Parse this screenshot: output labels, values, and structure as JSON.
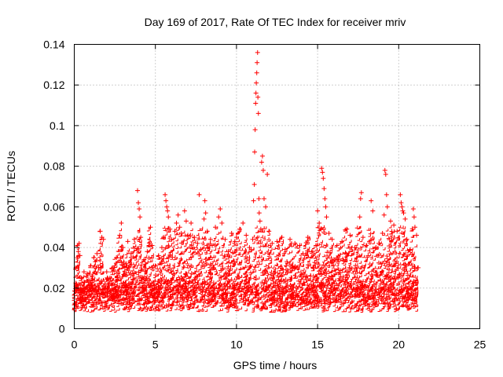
{
  "chart_data": {
    "type": "scatter",
    "title": "Day 169 of 2017, Rate Of TEC Index for receiver mriv",
    "xlabel": "GPS time / hours",
    "ylabel": "ROTI / TECUs",
    "xlim": [
      0,
      25
    ],
    "ylim": [
      0,
      0.14
    ],
    "xticks": [
      0,
      5,
      10,
      15,
      20,
      25
    ],
    "yticks": [
      0,
      0.02,
      0.04,
      0.06,
      0.08,
      0.1,
      0.12,
      0.14
    ],
    "xtick_labels": [
      "0",
      "5",
      "10",
      "15",
      "20",
      "25"
    ],
    "ytick_labels": [
      "0",
      "0.02",
      "0.04",
      "0.06",
      "0.08",
      "0.1",
      "0.12",
      "0.14"
    ],
    "grid": true,
    "marker": "plus",
    "color": "#ff0000",
    "series": [
      {
        "name": "ROTI",
        "points": [
          [
            0.05,
            0.012
          ],
          [
            0.1,
            0.03
          ],
          [
            0.15,
            0.022
          ],
          [
            0.2,
            0.041
          ],
          [
            0.25,
            0.038
          ],
          [
            0.3,
            0.042
          ],
          [
            0.35,
            0.036
          ],
          [
            0.4,
            0.018
          ],
          [
            0.45,
            0.025
          ],
          [
            0.5,
            0.015
          ],
          [
            0.6,
            0.028
          ],
          [
            0.7,
            0.02
          ],
          [
            0.8,
            0.027
          ],
          [
            0.9,
            0.024
          ],
          [
            1.0,
            0.031
          ],
          [
            1.1,
            0.026
          ],
          [
            1.2,
            0.035
          ],
          [
            1.3,
            0.033
          ],
          [
            1.4,
            0.037
          ],
          [
            1.5,
            0.03
          ],
          [
            1.6,
            0.048
          ],
          [
            1.7,
            0.045
          ],
          [
            1.8,
            0.044
          ],
          [
            1.9,
            0.022
          ],
          [
            2.0,
            0.028
          ],
          [
            2.2,
            0.025
          ],
          [
            2.4,
            0.03
          ],
          [
            2.6,
            0.035
          ],
          [
            2.8,
            0.046
          ],
          [
            2.9,
            0.052
          ],
          [
            3.0,
            0.04
          ],
          [
            3.2,
            0.032
          ],
          [
            3.3,
            0.043
          ],
          [
            3.5,
            0.037
          ],
          [
            3.7,
            0.044
          ],
          [
            3.9,
            0.068
          ],
          [
            3.95,
            0.062
          ],
          [
            4.0,
            0.059
          ],
          [
            4.05,
            0.055
          ],
          [
            4.1,
            0.045
          ],
          [
            4.3,
            0.034
          ],
          [
            4.5,
            0.038
          ],
          [
            4.7,
            0.05
          ],
          [
            4.8,
            0.041
          ],
          [
            5.0,
            0.031
          ],
          [
            5.2,
            0.036
          ],
          [
            5.4,
            0.04
          ],
          [
            5.5,
            0.045
          ],
          [
            5.6,
            0.066
          ],
          [
            5.65,
            0.063
          ],
          [
            5.7,
            0.06
          ],
          [
            5.75,
            0.058
          ],
          [
            5.8,
            0.055
          ],
          [
            5.9,
            0.049
          ],
          [
            6.0,
            0.044
          ],
          [
            6.2,
            0.048
          ],
          [
            6.3,
            0.052
          ],
          [
            6.4,
            0.056
          ],
          [
            6.5,
            0.05
          ],
          [
            6.6,
            0.047
          ],
          [
            6.8,
            0.058
          ],
          [
            6.9,
            0.053
          ],
          [
            7.0,
            0.046
          ],
          [
            7.2,
            0.052
          ],
          [
            7.4,
            0.045
          ],
          [
            7.6,
            0.042
          ],
          [
            7.7,
            0.066
          ],
          [
            7.8,
            0.039
          ],
          [
            8.0,
            0.054
          ],
          [
            8.05,
            0.063
          ],
          [
            8.1,
            0.057
          ],
          [
            8.2,
            0.048
          ],
          [
            8.4,
            0.044
          ],
          [
            8.5,
            0.041
          ],
          [
            8.7,
            0.05
          ],
          [
            8.9,
            0.055
          ],
          [
            9.0,
            0.059
          ],
          [
            9.1,
            0.052
          ],
          [
            9.3,
            0.044
          ],
          [
            9.5,
            0.038
          ],
          [
            9.7,
            0.047
          ],
          [
            9.9,
            0.043
          ],
          [
            10.0,
            0.045
          ],
          [
            10.2,
            0.049
          ],
          [
            10.4,
            0.052
          ],
          [
            10.6,
            0.046
          ],
          [
            10.8,
            0.04
          ],
          [
            11.0,
            0.044
          ],
          [
            11.05,
            0.063
          ],
          [
            11.1,
            0.071
          ],
          [
            11.12,
            0.087
          ],
          [
            11.15,
            0.098
          ],
          [
            11.18,
            0.111
          ],
          [
            11.2,
            0.116
          ],
          [
            11.22,
            0.121
          ],
          [
            11.25,
            0.126
          ],
          [
            11.27,
            0.131
          ],
          [
            11.3,
            0.136
          ],
          [
            11.32,
            0.114
          ],
          [
            11.35,
            0.106
          ],
          [
            11.38,
            0.064
          ],
          [
            11.4,
            0.057
          ],
          [
            11.45,
            0.053
          ],
          [
            11.5,
            0.049
          ],
          [
            11.55,
            0.082
          ],
          [
            11.6,
            0.085
          ],
          [
            11.65,
            0.078
          ],
          [
            11.7,
            0.064
          ],
          [
            11.8,
            0.06
          ],
          [
            11.9,
            0.076
          ],
          [
            12.0,
            0.048
          ],
          [
            12.2,
            0.042
          ],
          [
            12.5,
            0.043
          ],
          [
            12.8,
            0.045
          ],
          [
            13.0,
            0.039
          ],
          [
            13.3,
            0.044
          ],
          [
            13.6,
            0.042
          ],
          [
            13.9,
            0.041
          ],
          [
            14.1,
            0.037
          ],
          [
            14.4,
            0.045
          ],
          [
            14.7,
            0.038
          ],
          [
            14.9,
            0.041
          ],
          [
            15.0,
            0.058
          ],
          [
            15.1,
            0.052
          ],
          [
            15.2,
            0.049
          ],
          [
            15.25,
            0.079
          ],
          [
            15.3,
            0.077
          ],
          [
            15.35,
            0.074
          ],
          [
            15.4,
            0.069
          ],
          [
            15.45,
            0.064
          ],
          [
            15.5,
            0.06
          ],
          [
            15.55,
            0.055
          ],
          [
            15.7,
            0.047
          ],
          [
            15.9,
            0.044
          ],
          [
            16.2,
            0.041
          ],
          [
            16.5,
            0.043
          ],
          [
            16.8,
            0.049
          ],
          [
            17.0,
            0.046
          ],
          [
            17.3,
            0.04
          ],
          [
            17.6,
            0.055
          ],
          [
            17.65,
            0.064
          ],
          [
            17.7,
            0.067
          ],
          [
            17.8,
            0.045
          ],
          [
            18.0,
            0.041
          ],
          [
            18.3,
            0.063
          ],
          [
            18.4,
            0.058
          ],
          [
            18.6,
            0.04
          ],
          [
            18.8,
            0.042
          ],
          [
            19.0,
            0.047
          ],
          [
            19.1,
            0.056
          ],
          [
            19.15,
            0.078
          ],
          [
            19.2,
            0.076
          ],
          [
            19.25,
            0.066
          ],
          [
            19.3,
            0.06
          ],
          [
            19.5,
            0.053
          ],
          [
            19.7,
            0.051
          ],
          [
            19.9,
            0.048
          ],
          [
            20.1,
            0.066
          ],
          [
            20.15,
            0.062
          ],
          [
            20.2,
            0.06
          ],
          [
            20.25,
            0.058
          ],
          [
            20.3,
            0.057
          ],
          [
            20.4,
            0.054
          ],
          [
            20.5,
            0.044
          ],
          [
            20.7,
            0.039
          ],
          [
            20.9,
            0.059
          ],
          [
            20.95,
            0.055
          ],
          [
            21.0,
            0.05
          ],
          [
            21.1,
            0.046
          ],
          [
            21.2,
            0.03
          ]
        ]
      }
    ]
  }
}
